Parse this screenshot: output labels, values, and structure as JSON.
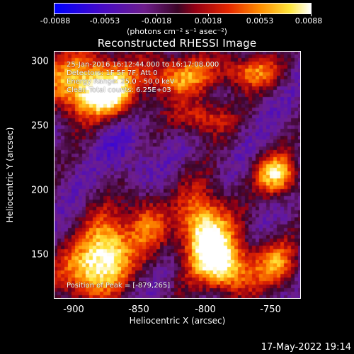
{
  "colorbar": {
    "ticks": [
      "-0.0088",
      "-0.0053",
      "-0.0018",
      "0.0018",
      "0.0053",
      "0.0088"
    ],
    "units": "(photons cm⁻² s⁻¹ asec⁻²)"
  },
  "chart_data": {
    "type": "heatmap",
    "title": "Reconstructed RHESSI Image",
    "xlabel": "Heliocentric X (arcsec)",
    "ylabel": "Heliocentric Y (arcsec)",
    "xlim": [
      -915,
      -728
    ],
    "ylim": [
      113,
      307
    ],
    "x_ticks": [
      "-900",
      "-850",
      "-800",
      "-750"
    ],
    "y_ticks": [
      "300",
      "250",
      "200",
      "150"
    ],
    "color_range": [
      -0.0088,
      0.0088
    ],
    "peak_position": [
      -879,
      265
    ]
  },
  "info": {
    "line1": "25-Jan-2016 16:12:44.000 to 16:17:08.000",
    "line2": "Detectors: 1F 5F 7F, Att 0",
    "line3": "Energy Range: 25.0 - 50.0 keV",
    "line4": "Clean   Total counts: 6.25E+03",
    "peak": "Position of Peak = [-879,265]"
  },
  "timestamp": "17-May-2022 19:14"
}
